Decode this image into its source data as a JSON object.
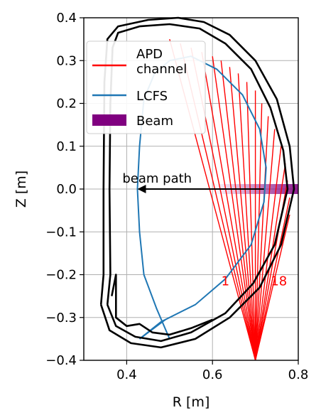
{
  "chart_data": {
    "type": "line",
    "xlabel": "R [m]",
    "ylabel": "Z [m]",
    "xlim": [
      0.3,
      0.8
    ],
    "ylim": [
      -0.4,
      0.4
    ],
    "x_ticks": [
      "0.4",
      "0.6",
      "0.8"
    ],
    "x_tick_values": [
      0.4,
      0.6,
      0.8
    ],
    "y_ticks": [
      "0.4",
      "0.3",
      "0.2",
      "0.1",
      "0.0",
      "−0.1",
      "−0.2",
      "−0.3",
      "−0.4"
    ],
    "y_tick_values": [
      0.4,
      0.3,
      0.2,
      0.1,
      0.0,
      -0.1,
      -0.2,
      -0.3,
      -0.4
    ],
    "grid": true,
    "legend_placement": "upper-left",
    "legend": [
      {
        "label_line1": "APD",
        "label_line2": "channel",
        "color": "#ff0000",
        "kind": "line"
      },
      {
        "label_line1": "LCFS",
        "label_line2": "",
        "color": "#1f77b4",
        "kind": "line"
      },
      {
        "label_line1": "Beam",
        "label_line2": "",
        "color": "#800080",
        "kind": "patch"
      }
    ],
    "vessel_outer": [
      [
        0.34,
        -0.27
      ],
      [
        0.36,
        -0.33
      ],
      [
        0.41,
        -0.36
      ],
      [
        0.48,
        -0.37
      ],
      [
        0.56,
        -0.35
      ],
      [
        0.64,
        -0.3
      ],
      [
        0.71,
        -0.23
      ],
      [
        0.76,
        -0.13
      ],
      [
        0.79,
        0.0
      ],
      [
        0.78,
        0.1
      ],
      [
        0.75,
        0.21
      ],
      [
        0.7,
        0.3
      ],
      [
        0.64,
        0.36
      ],
      [
        0.58,
        0.39
      ],
      [
        0.52,
        0.4
      ],
      [
        0.45,
        0.395
      ],
      [
        0.38,
        0.38
      ],
      [
        0.355,
        0.35
      ],
      [
        0.348,
        0.25
      ],
      [
        0.346,
        0.0
      ],
      [
        0.346,
        -0.2
      ],
      [
        0.34,
        -0.27
      ]
    ],
    "vessel_inner": [
      [
        0.355,
        -0.27
      ],
      [
        0.375,
        -0.32
      ],
      [
        0.42,
        -0.345
      ],
      [
        0.48,
        -0.355
      ],
      [
        0.55,
        -0.335
      ],
      [
        0.63,
        -0.29
      ],
      [
        0.695,
        -0.22
      ],
      [
        0.745,
        -0.13
      ],
      [
        0.775,
        0.0
      ],
      [
        0.765,
        0.09
      ],
      [
        0.735,
        0.19
      ],
      [
        0.69,
        0.28
      ],
      [
        0.63,
        0.34
      ],
      [
        0.57,
        0.375
      ],
      [
        0.5,
        0.385
      ],
      [
        0.43,
        0.38
      ],
      [
        0.38,
        0.365
      ],
      [
        0.367,
        0.33
      ],
      [
        0.362,
        0.2
      ],
      [
        0.36,
        0.0
      ],
      [
        0.362,
        -0.2
      ],
      [
        0.355,
        -0.27
      ]
    ],
    "vessel_divertor": [
      [
        0.365,
        -0.25
      ],
      [
        0.375,
        -0.2
      ],
      [
        0.375,
        -0.3
      ],
      [
        0.4,
        -0.32
      ],
      [
        0.43,
        -0.315
      ],
      [
        0.46,
        -0.335
      ],
      [
        0.5,
        -0.34
      ],
      [
        0.55,
        -0.325
      ],
      [
        0.6,
        -0.305
      ]
    ],
    "lcfs": [
      [
        0.43,
        -0.35
      ],
      [
        0.48,
        -0.31
      ],
      [
        0.56,
        -0.27
      ],
      [
        0.63,
        -0.21
      ],
      [
        0.69,
        -0.13
      ],
      [
        0.72,
        -0.03
      ],
      [
        0.725,
        0.05
      ],
      [
        0.71,
        0.14
      ],
      [
        0.67,
        0.22
      ],
      [
        0.61,
        0.28
      ],
      [
        0.55,
        0.31
      ],
      [
        0.5,
        0.3
      ],
      [
        0.465,
        0.27
      ],
      [
        0.44,
        0.21
      ],
      [
        0.43,
        0.1
      ],
      [
        0.425,
        0.0
      ],
      [
        0.43,
        -0.1
      ],
      [
        0.44,
        -0.2
      ],
      [
        0.47,
        -0.28
      ],
      [
        0.5,
        -0.35
      ]
    ],
    "lcfs_leg_inner": [
      [
        0.43,
        -0.35
      ],
      [
        0.49,
        -0.305
      ]
    ],
    "apd_source": [
      0.7,
      -0.4
    ],
    "apd_endpoints": [
      [
        0.5,
        0.35
      ],
      [
        0.525,
        0.34
      ],
      [
        0.55,
        0.33
      ],
      [
        0.575,
        0.32
      ],
      [
        0.6,
        0.31
      ],
      [
        0.62,
        0.3
      ],
      [
        0.64,
        0.285
      ],
      [
        0.66,
        0.27
      ],
      [
        0.68,
        0.25
      ],
      [
        0.7,
        0.23
      ],
      [
        0.715,
        0.2
      ],
      [
        0.73,
        0.17
      ],
      [
        0.745,
        0.14
      ],
      [
        0.76,
        0.1
      ],
      [
        0.77,
        0.06
      ],
      [
        0.775,
        0.02
      ],
      [
        0.78,
        -0.02
      ],
      [
        0.78,
        -0.06
      ]
    ],
    "channel_labels": [
      {
        "text": "1",
        "x": 0.63,
        "y": -0.225
      },
      {
        "text": "18",
        "x": 0.755,
        "y": -0.225
      }
    ],
    "beam": {
      "x_start": 0.6,
      "x_end": 0.8,
      "y": 0.0,
      "color": "#800080"
    },
    "beam_path_annotation": {
      "text": "beam path",
      "arrow_from": [
        0.72,
        0.0
      ],
      "arrow_to": [
        0.425,
        0.0
      ],
      "label_x": 0.39,
      "label_y": 0.015
    }
  }
}
